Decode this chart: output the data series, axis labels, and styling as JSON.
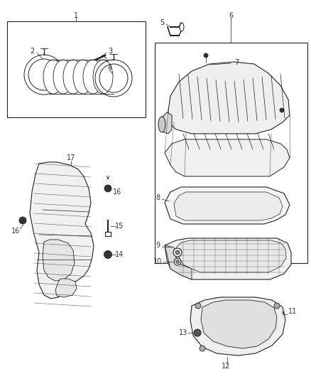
{
  "bg_color": "#ffffff",
  "lc": "#222222",
  "tc": "#333333",
  "fig_w": 4.38,
  "fig_h": 5.33,
  "dpi": 100
}
